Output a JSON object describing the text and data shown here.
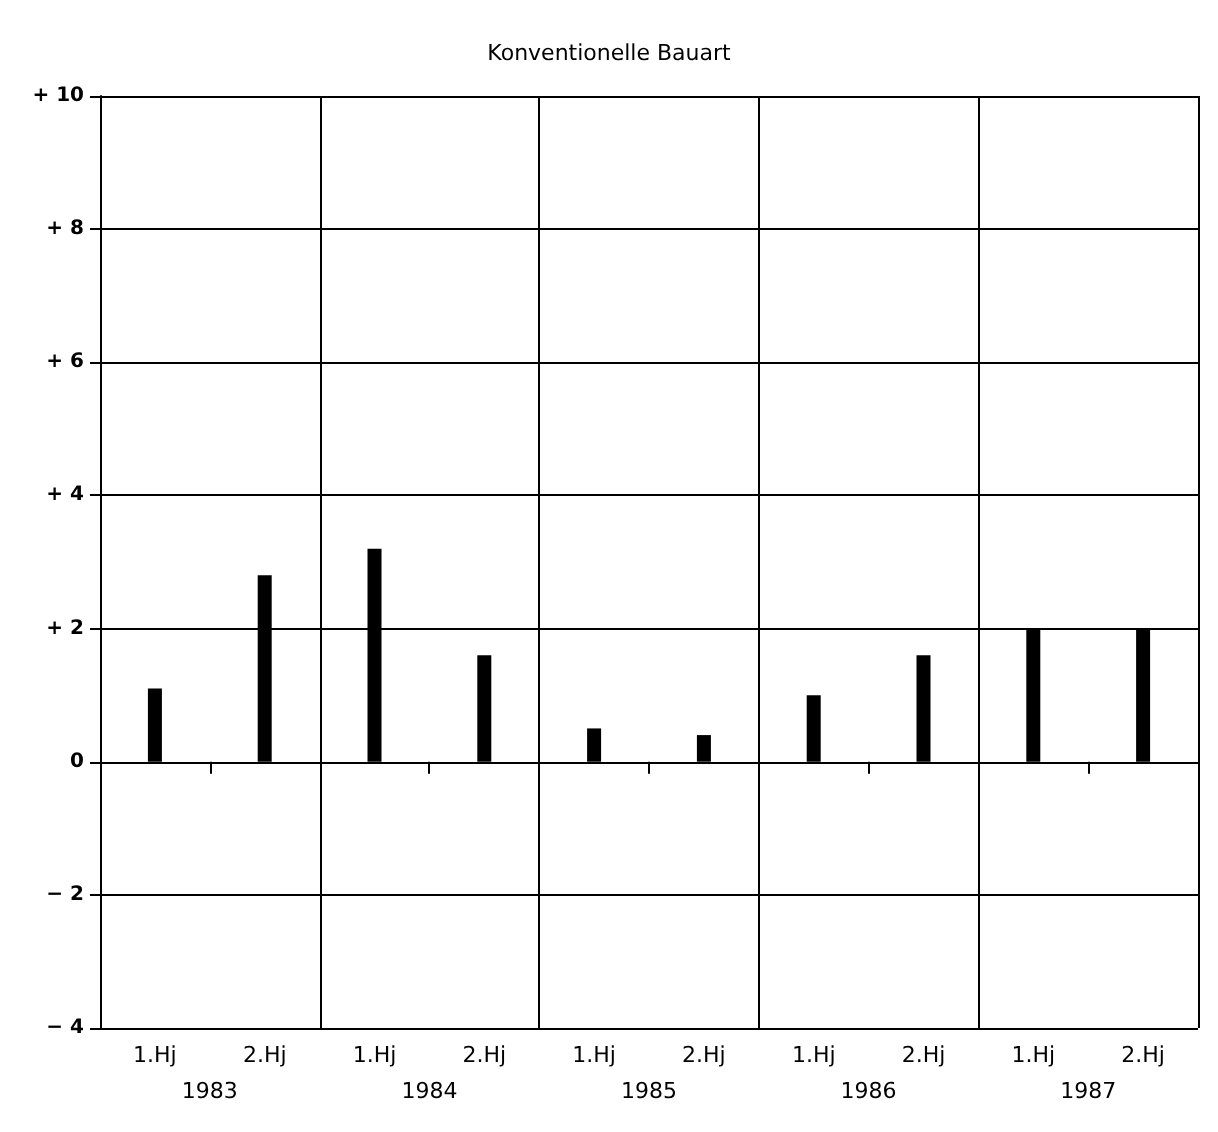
{
  "chart_data": {
    "type": "bar",
    "title": "Konventionelle Bauart",
    "categories": [
      "1.Hj",
      "2.Hj",
      "1.Hj",
      "2.Hj",
      "1.Hj",
      "2.Hj",
      "1.Hj",
      "2.Hj",
      "1.Hj",
      "2.Hj"
    ],
    "annotations": [
      "1983",
      "1984",
      "1985",
      "1986",
      "1987"
    ],
    "values": [
      1.1,
      2.8,
      3.2,
      1.6,
      0.5,
      0.4,
      1.0,
      1.6,
      2.0,
      2.0
    ],
    "color": "#000000",
    "ylim": [
      -4,
      10
    ],
    "yticks": [
      {
        "value": -4,
        "label": "− 4"
      },
      {
        "value": -2,
        "label": "− 2"
      },
      0,
      {
        "value": 2,
        "label": "+ 2"
      },
      {
        "value": 4,
        "label": "+ 4"
      },
      {
        "value": 6,
        "label": "+ 6"
      },
      {
        "value": 8,
        "label": "+ 8"
      },
      {
        "value": 10,
        "label": "+ 10"
      }
    ],
    "grid": true
  }
}
